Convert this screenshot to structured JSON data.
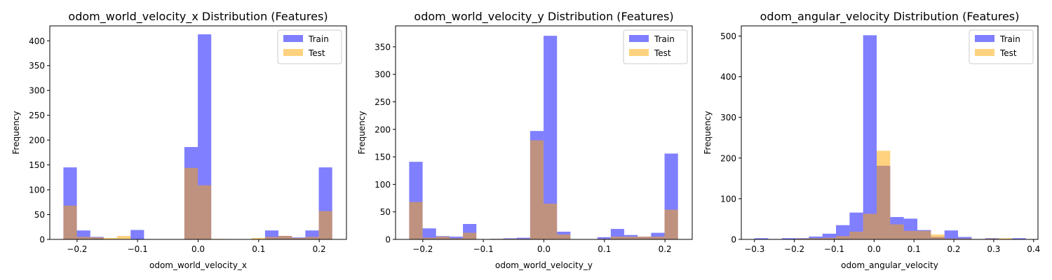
{
  "chart_data": [
    {
      "type": "histogram",
      "title": "odom_world_velocity_x Distribution (Features)",
      "xlabel": "odom_world_velocity_x",
      "ylabel": "Frequency",
      "xlim": [
        -0.245,
        0.245
      ],
      "ylim": [
        0,
        430
      ],
      "xticks": [
        -0.2,
        -0.1,
        0.0,
        0.1,
        0.2
      ],
      "xtick_labels": [
        "−0.2",
        "−0.1",
        "0.0",
        "0.1",
        "0.2"
      ],
      "yticks": [
        0,
        50,
        100,
        150,
        200,
        250,
        300,
        350,
        400
      ],
      "legend_position": "top-right",
      "series": [
        {
          "name": "Train",
          "color": "#0000ff",
          "opacity": 0.5,
          "bins": [
            -0.2225,
            -0.2003,
            -0.1781,
            -0.1559,
            -0.1337,
            -0.1115,
            -0.0893,
            -0.0671,
            -0.0449,
            -0.0227,
            -0.0005,
            0.0217,
            0.0439,
            0.0661,
            0.0883,
            0.1105,
            0.1327,
            0.1549,
            0.1771,
            0.1993,
            0.2215
          ],
          "counts": [
            145,
            18,
            5,
            0,
            0,
            19,
            0,
            0,
            0,
            186,
            413,
            0,
            0,
            0,
            0,
            18,
            7,
            4,
            18,
            145
          ]
        },
        {
          "name": "Test",
          "color": "#ffa500",
          "opacity": 0.5,
          "bins": [
            -0.2225,
            -0.2003,
            -0.1781,
            -0.1559,
            -0.1337,
            -0.1115,
            -0.0893,
            -0.0671,
            -0.0449,
            -0.0227,
            -0.0005,
            0.0217,
            0.0439,
            0.0661,
            0.0883,
            0.1105,
            0.1327,
            0.1549,
            0.1771,
            0.1993,
            0.2215
          ],
          "counts": [
            68,
            5,
            4,
            3,
            7,
            0,
            0,
            0,
            0,
            144,
            109,
            1,
            0,
            0,
            3,
            5,
            7,
            3,
            5,
            57
          ]
        }
      ]
    },
    {
      "type": "histogram",
      "title": "odom_world_velocity_y Distribution (Features)",
      "xlabel": "odom_world_velocity_y",
      "ylabel": "Frequency",
      "xlim": [
        -0.245,
        0.245
      ],
      "ylim": [
        0,
        388
      ],
      "xticks": [
        -0.2,
        -0.1,
        0.0,
        0.1,
        0.2
      ],
      "xtick_labels": [
        "−0.2",
        "−0.1",
        "0.0",
        "0.1",
        "0.2"
      ],
      "yticks": [
        0,
        50,
        100,
        150,
        200,
        250,
        300,
        350
      ],
      "legend_position": "top-right",
      "series": [
        {
          "name": "Train",
          "color": "#0000ff",
          "opacity": 0.5,
          "bins": [
            -0.2225,
            -0.2003,
            -0.1781,
            -0.1559,
            -0.1337,
            -0.1115,
            -0.0893,
            -0.0671,
            -0.0449,
            -0.0227,
            -0.0005,
            0.0217,
            0.0439,
            0.0661,
            0.0883,
            0.1105,
            0.1327,
            0.1549,
            0.1771,
            0.1993,
            0.2215
          ],
          "counts": [
            141,
            20,
            6,
            5,
            28,
            0,
            1,
            2,
            3,
            197,
            370,
            14,
            0,
            0,
            4,
            19,
            8,
            5,
            12,
            156
          ]
        },
        {
          "name": "Test",
          "color": "#ffa500",
          "opacity": 0.5,
          "bins": [
            -0.2225,
            -0.2003,
            -0.1781,
            -0.1559,
            -0.1337,
            -0.1115,
            -0.0893,
            -0.0671,
            -0.0449,
            -0.0227,
            -0.0005,
            0.0217,
            0.0439,
            0.0661,
            0.0883,
            0.1105,
            0.1327,
            0.1549,
            0.1771,
            0.1993,
            0.2215
          ],
          "counts": [
            68,
            3,
            5,
            2,
            12,
            0,
            1,
            1,
            1,
            180,
            65,
            9,
            0,
            0,
            1,
            5,
            5,
            5,
            5,
            54
          ]
        }
      ]
    },
    {
      "type": "histogram",
      "title": "odom_angular_velocity Distribution (Features)",
      "xlabel": "odom_angular_velocity",
      "ylabel": "Frequency",
      "xlim": [
        -0.333,
        0.411
      ],
      "ylim": [
        0,
        525
      ],
      "xticks": [
        -0.3,
        -0.2,
        -0.1,
        0.0,
        0.1,
        0.2,
        0.3,
        0.4
      ],
      "xtick_labels": [
        "−0.3",
        "−0.2",
        "−0.1",
        "0.0",
        "0.1",
        "0.2",
        "0.3",
        "0.4"
      ],
      "yticks": [
        0,
        100,
        200,
        300,
        400,
        500
      ],
      "legend_position": "top-right",
      "series": [
        {
          "name": "Train",
          "color": "#0000ff",
          "opacity": 0.5,
          "bins": [
            -0.2995,
            -0.2655,
            -0.2315,
            -0.1975,
            -0.1635,
            -0.1295,
            -0.0955,
            -0.0615,
            -0.0275,
            0.0065,
            0.0405,
            0.0745,
            0.1085,
            0.1425,
            0.1765,
            0.2105,
            0.2445,
            0.2785,
            0.3125,
            0.3465,
            0.3805
          ],
          "counts": [
            3,
            1,
            3,
            3,
            7,
            14,
            35,
            66,
            502,
            181,
            55,
            51,
            23,
            6,
            22,
            6,
            1,
            3,
            1,
            3
          ]
        },
        {
          "name": "Test",
          "color": "#ffa500",
          "opacity": 0.5,
          "bins": [
            -0.2995,
            -0.2655,
            -0.2315,
            -0.1975,
            -0.1635,
            -0.1295,
            -0.0955,
            -0.0615,
            -0.0275,
            0.0065,
            0.0405,
            0.0745,
            0.1085,
            0.1425,
            0.1765,
            0.2105,
            0.2445,
            0.2785,
            0.3125,
            0.3465,
            0.3805
          ],
          "counts": [
            0,
            0,
            0,
            2,
            3,
            4,
            8,
            19,
            63,
            218,
            37,
            21,
            21,
            12,
            2,
            2,
            0,
            2,
            3,
            1
          ]
        }
      ]
    }
  ]
}
